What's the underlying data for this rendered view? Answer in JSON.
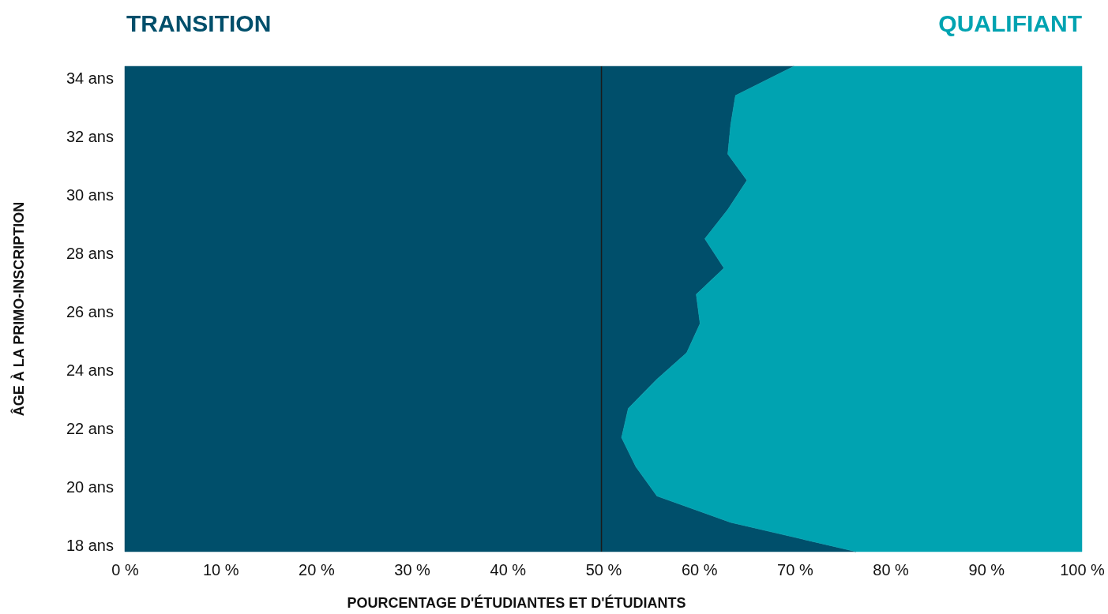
{
  "chart_data": {
    "type": "area",
    "orientation": "horizontal",
    "stacked": true,
    "xlabel": "POURCENTAGE D'ÉTUDIANTES ET D'ÉTUDIANTS",
    "ylabel": "ÂGE À LA PRIMO-INSCRIPTION",
    "x": [
      17.8,
      18.8,
      19.7,
      20.7,
      21.7,
      22.7,
      23.7,
      24.6,
      25.6,
      26.6,
      27.5,
      28.5,
      29.5,
      30.5,
      31.4,
      32.4,
      33.4,
      34.4
    ],
    "series": [
      {
        "name": "TRANSITION",
        "color": "#004f6b",
        "values": [
          76.4,
          63.3,
          55.6,
          53.4,
          51.9,
          52.6,
          55.6,
          58.7,
          60.1,
          59.7,
          62.6,
          60.6,
          63.0,
          65.0,
          63.0,
          63.3,
          63.8,
          69.9
        ]
      },
      {
        "name": "QUALIFIANT",
        "color": "#00a3b1",
        "values": [
          23.6,
          36.7,
          44.4,
          46.6,
          48.1,
          47.4,
          44.4,
          41.3,
          39.9,
          40.3,
          37.4,
          39.4,
          37.0,
          35.0,
          37.0,
          36.7,
          36.2,
          30.1
        ]
      }
    ],
    "xlim": [
      0,
      100
    ],
    "xticks": [
      {
        "value": 0,
        "label": "0 %"
      },
      {
        "value": 10,
        "label": "10 %"
      },
      {
        "value": 20,
        "label": "20 %"
      },
      {
        "value": 30,
        "label": "30 %"
      },
      {
        "value": 40,
        "label": "40 %"
      },
      {
        "value": 50,
        "label": "50 %"
      },
      {
        "value": 60,
        "label": "60 %"
      },
      {
        "value": 70,
        "label": "70 %"
      },
      {
        "value": 80,
        "label": "80 %"
      },
      {
        "value": 90,
        "label": "90 %"
      },
      {
        "value": 100,
        "label": "100 %"
      }
    ],
    "ylim": [
      17.8,
      34.4
    ],
    "yticks": [
      {
        "value": 18,
        "label": "18 ans"
      },
      {
        "value": 20,
        "label": "20 ans"
      },
      {
        "value": 22,
        "label": "22 ans"
      },
      {
        "value": 24,
        "label": "24 ans"
      },
      {
        "value": 26,
        "label": "26 ans"
      },
      {
        "value": 28,
        "label": "28 ans"
      },
      {
        "value": 30,
        "label": "30 ans"
      },
      {
        "value": 32,
        "label": "32 ans"
      },
      {
        "value": 34,
        "label": "34 ans"
      }
    ],
    "ref_lines": [
      {
        "axis": "x",
        "value": 49.8,
        "label": null,
        "color": "#1a1a1a"
      }
    ],
    "grid": false,
    "legend": "top"
  }
}
